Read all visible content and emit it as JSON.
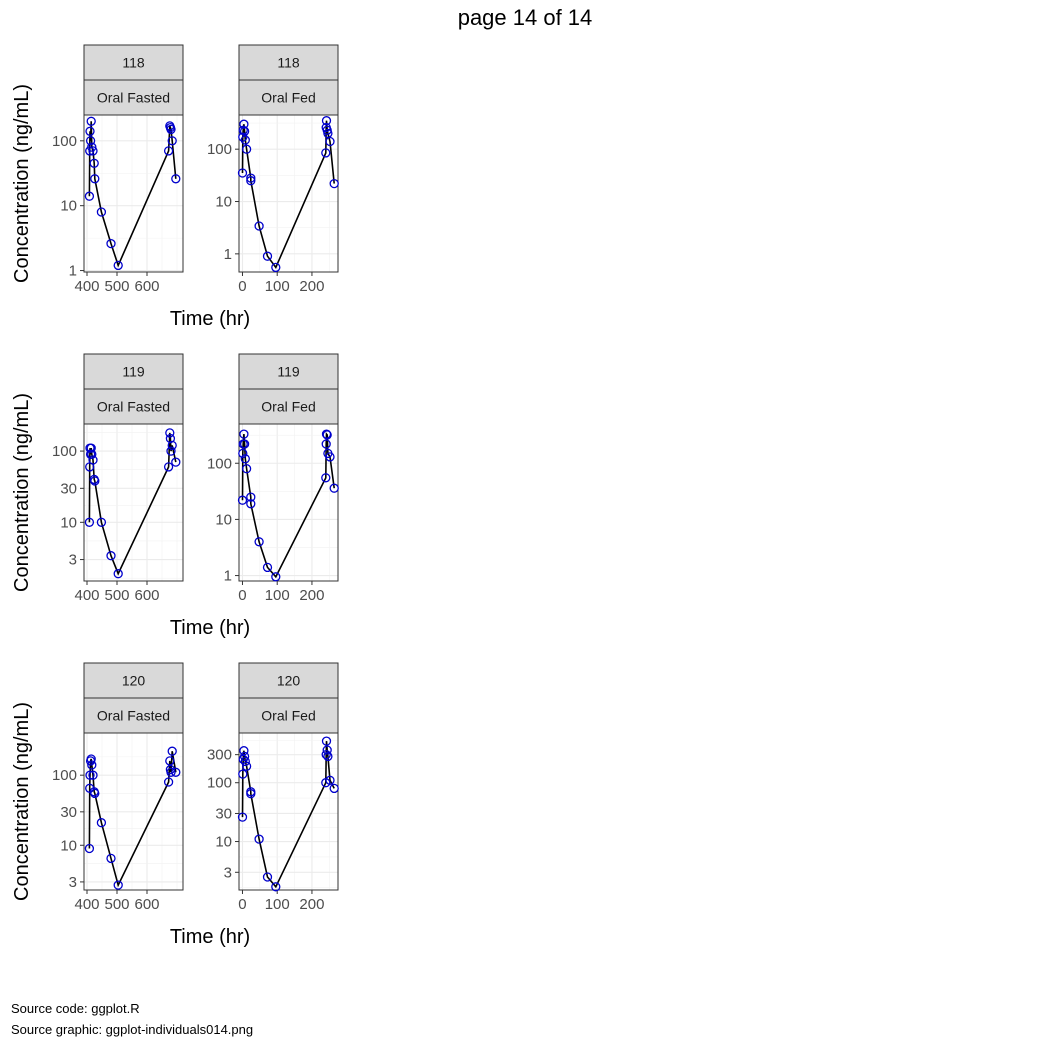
{
  "page": {
    "title": "page 14 of 14",
    "caption_lines": [
      "Source code: ggplot.R",
      "Source graphic: ggplot-individuals014.png"
    ]
  },
  "colors": {
    "line": "#000000",
    "points": "#0000cc",
    "strip": "#d9d9d9",
    "grid": "#ebebeb"
  },
  "chart_data": [
    {
      "type": "line",
      "subject": "118",
      "facets": [
        {
          "strip": [
            "118",
            "Oral Fasted"
          ],
          "xlabel": "Time (hr)",
          "ylabel": "Concentration (ng/mL)",
          "xlim": [
            390,
            720
          ],
          "xticks": [
            400,
            500,
            600
          ],
          "ylim": [
            0.95,
            250
          ],
          "yscale": "log10",
          "yticks": [
            1,
            10,
            100
          ],
          "x": [
            408,
            409,
            410,
            412,
            414,
            416,
            420,
            424,
            426,
            448,
            480,
            504,
            672,
            676,
            678,
            680,
            684,
            696
          ],
          "y": [
            14,
            70,
            140,
            100,
            200,
            80,
            70,
            45,
            26,
            8,
            2.6,
            1.2,
            70,
            170,
            160,
            150,
            100,
            26
          ]
        },
        {
          "strip": [
            "118",
            "Oral Fed"
          ],
          "xlabel": "Time (hr)",
          "ylabel": "Concentration (ng/mL)",
          "xlim": [
            -10,
            275
          ],
          "xticks": [
            0,
            100,
            200
          ],
          "ylim": [
            0.45,
            450
          ],
          "yscale": "log10",
          "yticks": [
            1,
            10,
            100
          ],
          "x": [
            0,
            1,
            2,
            4,
            6,
            8,
            12,
            24,
            24,
            48,
            72,
            96,
            240,
            241,
            242,
            244,
            246,
            252,
            264
          ],
          "y": [
            35,
            170,
            230,
            300,
            220,
            150,
            100,
            28,
            25,
            3.4,
            0.9,
            0.55,
            85,
            260,
            350,
            230,
            200,
            140,
            22
          ]
        }
      ]
    },
    {
      "type": "line",
      "subject": "119",
      "facets": [
        {
          "strip": [
            "119",
            "Oral Fasted"
          ],
          "xlabel": "Time (hr)",
          "ylabel": "Concentration (ng/mL)",
          "xlim": [
            390,
            720
          ],
          "xticks": [
            400,
            500,
            600
          ],
          "ylim": [
            1.5,
            240
          ],
          "yscale": "log10",
          "yticks": [
            3,
            10,
            30,
            100
          ],
          "x": [
            408,
            409,
            410,
            412,
            414,
            416,
            420,
            424,
            426,
            448,
            480,
            504,
            672,
            676,
            678,
            680,
            684,
            696
          ],
          "y": [
            10,
            60,
            110,
            90,
            110,
            90,
            75,
            40,
            38,
            10,
            3.4,
            1.9,
            60,
            180,
            150,
            100,
            120,
            70
          ]
        },
        {
          "strip": [
            "119",
            "Oral Fed"
          ],
          "xlabel": "Time (hr)",
          "ylabel": "Concentration (ng/mL)",
          "xlim": [
            -10,
            275
          ],
          "xticks": [
            0,
            100,
            200
          ],
          "ylim": [
            0.8,
            500
          ],
          "yscale": "log10",
          "yticks": [
            1,
            10,
            100
          ],
          "x": [
            0,
            1,
            2,
            4,
            6,
            8,
            12,
            24,
            24,
            48,
            72,
            96,
            240,
            241,
            242,
            244,
            246,
            252,
            264
          ],
          "y": [
            22,
            150,
            220,
            330,
            220,
            120,
            80,
            25,
            19,
            4,
            1.4,
            0.95,
            55,
            220,
            330,
            320,
            150,
            130,
            36
          ]
        }
      ]
    },
    {
      "type": "line",
      "subject": "120",
      "facets": [
        {
          "strip": [
            "120",
            "Oral Fasted"
          ],
          "xlabel": "Time (hr)",
          "ylabel": "Concentration (ng/mL)",
          "xlim": [
            390,
            720
          ],
          "xticks": [
            400,
            500,
            600
          ],
          "ylim": [
            2.3,
            400
          ],
          "yscale": "log10",
          "yticks": [
            3,
            10,
            30,
            100
          ],
          "x": [
            408,
            409,
            410,
            412,
            414,
            416,
            420,
            424,
            426,
            448,
            480,
            504,
            672,
            676,
            678,
            680,
            684,
            696
          ],
          "y": [
            9,
            65,
            100,
            160,
            170,
            140,
            100,
            58,
            55,
            21,
            6.5,
            2.7,
            80,
            160,
            120,
            110,
            220,
            110
          ]
        },
        {
          "strip": [
            "120",
            "Oral Fed"
          ],
          "xlabel": "Time (hr)",
          "ylabel": "Concentration (ng/mL)",
          "xlim": [
            -10,
            275
          ],
          "xticks": [
            0,
            100,
            200
          ],
          "ylim": [
            1.5,
            700
          ],
          "yscale": "log10",
          "yticks": [
            3,
            10,
            30,
            100,
            300
          ],
          "x": [
            0,
            1,
            2,
            4,
            6,
            8,
            12,
            24,
            24,
            48,
            72,
            96,
            240,
            241,
            242,
            244,
            246,
            252,
            264
          ],
          "y": [
            26,
            140,
            250,
            350,
            280,
            230,
            190,
            70,
            65,
            11,
            2.5,
            1.7,
            100,
            300,
            510,
            360,
            280,
            110,
            80
          ]
        }
      ]
    }
  ]
}
